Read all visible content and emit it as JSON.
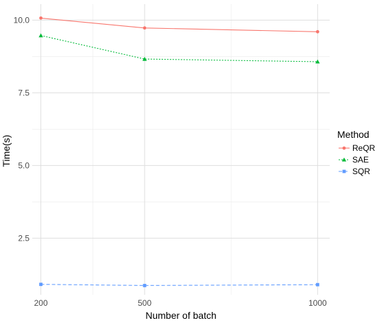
{
  "chart_data": {
    "type": "line",
    "xlabel": "Number of batch",
    "ylabel": "Time(s)",
    "x": [
      200,
      500,
      1000
    ],
    "x_ticks": [
      200,
      500,
      1000
    ],
    "x_tick_labels": [
      "200",
      "500",
      "1000"
    ],
    "y_ticks": [
      2.5,
      5.0,
      7.5,
      10.0
    ],
    "y_tick_labels": [
      "2.5",
      "5.0",
      "7.5",
      "10.0"
    ],
    "xlim": [
      175,
      1035
    ],
    "ylim": [
      0.55,
      10.55
    ],
    "grid": true,
    "legend": {
      "title": "Method",
      "placement": "right"
    },
    "series": [
      {
        "name": "ReQR",
        "values": [
          10.07,
          9.73,
          9.6
        ],
        "color": "#F8766D",
        "dash": "solid",
        "marker": "circle"
      },
      {
        "name": "SAE",
        "values": [
          9.47,
          8.66,
          8.57
        ],
        "color": "#00BA38",
        "dash": "dotted",
        "marker": "triangle"
      },
      {
        "name": "SQR",
        "values": [
          0.91,
          0.87,
          0.9
        ],
        "color": "#619CFF",
        "dash": "dashed",
        "marker": "square"
      }
    ]
  }
}
